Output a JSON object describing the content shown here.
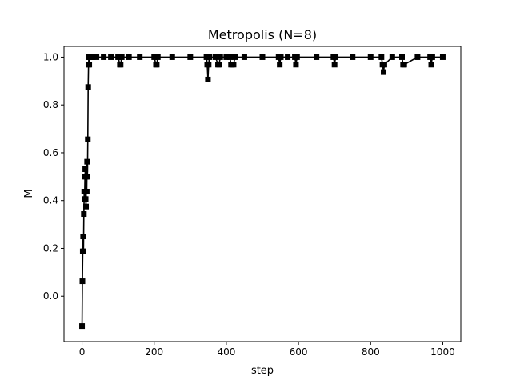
{
  "chart_data": {
    "type": "line",
    "title": "Metropolis (N=8)",
    "xlabel": "step",
    "ylabel": "M",
    "xlim": [
      -50,
      1050
    ],
    "ylim": [
      -0.19,
      1.045
    ],
    "xticks": [
      0,
      200,
      400,
      600,
      800,
      1000
    ],
    "xtick_labels": [
      "0",
      "200",
      "400",
      "600",
      "800",
      "1000"
    ],
    "yticks": [
      0.0,
      0.2,
      0.4,
      0.6,
      0.8,
      1.0
    ],
    "ytick_labels": [
      "0.0",
      "0.2",
      "0.4",
      "0.6",
      "0.8",
      "1.0"
    ],
    "grid": false,
    "series": [
      {
        "color": "#000000",
        "marker": "square",
        "x": [
          0,
          1,
          2,
          3,
          4,
          5,
          6,
          7,
          8,
          9,
          10,
          11,
          12,
          13,
          14,
          15,
          16,
          17,
          18,
          19,
          20,
          21,
          22,
          23,
          24,
          25,
          30,
          40,
          60,
          80,
          100,
          105,
          107,
          110,
          130,
          160,
          200,
          205,
          207,
          210,
          250,
          300,
          345,
          347,
          349,
          351,
          353,
          370,
          377,
          380,
          383,
          400,
          410,
          413,
          416,
          420,
          424,
          450,
          500,
          545,
          548,
          551,
          570,
          590,
          593,
          596,
          650,
          697,
          700,
          703,
          750,
          800,
          830,
          833,
          836,
          838,
          860,
          887,
          890,
          893,
          930,
          965,
          968,
          971,
          1000
        ],
        "y": [
          -0.125,
          0.0625,
          0.1875,
          0.25,
          0.1875,
          0.3438,
          0.4375,
          0.4063,
          0.5,
          0.5313,
          0.4063,
          0.375,
          0.5,
          0.4375,
          0.5625,
          0.5,
          0.6563,
          0.875,
          0.9688,
          1.0,
          0.9688,
          1.0,
          1.0,
          1.0,
          1.0,
          1.0,
          1.0,
          1.0,
          1.0,
          1.0,
          1.0,
          0.9688,
          0.9688,
          1.0,
          1.0,
          1.0,
          1.0,
          0.9688,
          0.9688,
          1.0,
          1.0,
          1.0,
          1.0,
          0.9688,
          0.9063,
          0.9688,
          1.0,
          1.0,
          0.9688,
          0.9688,
          1.0,
          1.0,
          1.0,
          0.9688,
          0.9688,
          0.9688,
          1.0,
          1.0,
          1.0,
          1.0,
          0.9688,
          1.0,
          1.0,
          1.0,
          0.9688,
          1.0,
          1.0,
          1.0,
          0.9688,
          1.0,
          1.0,
          1.0,
          1.0,
          0.9688,
          0.9375,
          0.9688,
          1.0,
          1.0,
          0.9688,
          0.9688,
          1.0,
          1.0,
          0.9688,
          1.0,
          1.0
        ]
      }
    ]
  }
}
